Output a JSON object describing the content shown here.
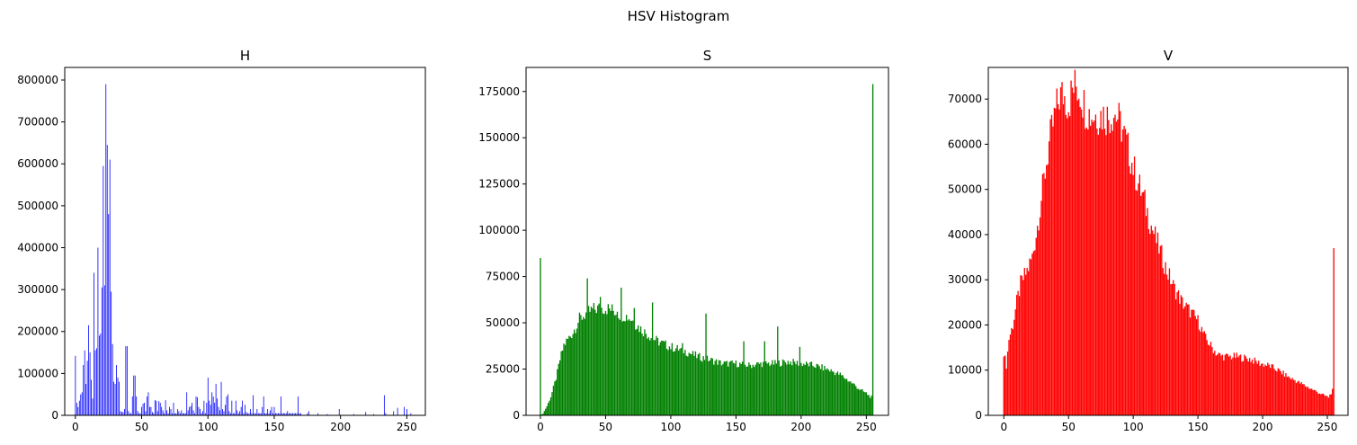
{
  "figure": {
    "suptitle": "HSV Histogram"
  },
  "chart_data": [
    {
      "type": "bar",
      "title": "H",
      "color": "#0000ff",
      "xlim": [
        -8,
        264
      ],
      "ylim": [
        0,
        830000
      ],
      "xticks": [
        0,
        50,
        100,
        150,
        200,
        250
      ],
      "xtick_labels": [
        "0",
        "50",
        "100",
        "150",
        "200",
        "250"
      ],
      "yticks": [
        0,
        100000,
        200000,
        300000,
        400000,
        500000,
        600000,
        700000,
        800000
      ],
      "ytick_labels": [
        "0",
        "100000",
        "200000",
        "300000",
        "400000",
        "500000",
        "600000",
        "700000",
        "800000"
      ],
      "points": [
        [
          0,
          142000
        ],
        [
          1,
          30000
        ],
        [
          2,
          20000
        ],
        [
          3,
          35000
        ],
        [
          4,
          50000
        ],
        [
          5,
          55000
        ],
        [
          6,
          120000
        ],
        [
          7,
          155000
        ],
        [
          8,
          75000
        ],
        [
          9,
          130000
        ],
        [
          10,
          215000
        ],
        [
          11,
          150000
        ],
        [
          12,
          85000
        ],
        [
          13,
          40000
        ],
        [
          14,
          340000
        ],
        [
          15,
          155000
        ],
        [
          16,
          160000
        ],
        [
          17,
          400000
        ],
        [
          18,
          190000
        ],
        [
          19,
          195000
        ],
        [
          20,
          305000
        ],
        [
          21,
          595000
        ],
        [
          22,
          310000
        ],
        [
          23,
          790000
        ],
        [
          24,
          645000
        ],
        [
          25,
          480000
        ],
        [
          26,
          610000
        ],
        [
          27,
          295000
        ],
        [
          28,
          170000
        ],
        [
          29,
          80000
        ],
        [
          30,
          75000
        ],
        [
          31,
          120000
        ],
        [
          32,
          90000
        ],
        [
          33,
          80000
        ],
        [
          34,
          10000
        ],
        [
          35,
          8000
        ],
        [
          36,
          8000
        ],
        [
          37,
          15000
        ],
        [
          38,
          165000
        ],
        [
          39,
          165000
        ],
        [
          40,
          10000
        ],
        [
          41,
          5000
        ],
        [
          42,
          5000
        ],
        [
          43,
          45000
        ],
        [
          44,
          95000
        ],
        [
          45,
          95000
        ],
        [
          46,
          45000
        ],
        [
          47,
          10000
        ],
        [
          48,
          5000
        ],
        [
          49,
          5000
        ],
        [
          50,
          20000
        ],
        [
          51,
          28000
        ],
        [
          52,
          30000
        ],
        [
          53,
          10000
        ],
        [
          54,
          45000
        ],
        [
          55,
          55000
        ],
        [
          56,
          20000
        ],
        [
          57,
          20000
        ],
        [
          58,
          8000
        ],
        [
          59,
          5000
        ],
        [
          60,
          36000
        ],
        [
          61,
          35000
        ],
        [
          62,
          10000
        ],
        [
          63,
          34000
        ],
        [
          64,
          30000
        ],
        [
          65,
          20000
        ],
        [
          66,
          12000
        ],
        [
          67,
          5000
        ],
        [
          68,
          36000
        ],
        [
          69,
          12000
        ],
        [
          70,
          5000
        ],
        [
          71,
          20000
        ],
        [
          72,
          15000
        ],
        [
          73,
          5000
        ],
        [
          74,
          30000
        ],
        [
          75,
          5000
        ],
        [
          76,
          5000
        ],
        [
          77,
          15000
        ],
        [
          78,
          10000
        ],
        [
          79,
          5000
        ],
        [
          80,
          12000
        ],
        [
          81,
          5000
        ],
        [
          82,
          5000
        ],
        [
          83,
          5000
        ],
        [
          84,
          55000
        ],
        [
          85,
          12000
        ],
        [
          86,
          20000
        ],
        [
          87,
          22000
        ],
        [
          88,
          30000
        ],
        [
          89,
          12000
        ],
        [
          90,
          5000
        ],
        [
          91,
          45000
        ],
        [
          92,
          43000
        ],
        [
          93,
          20000
        ],
        [
          94,
          15000
        ],
        [
          95,
          5000
        ],
        [
          96,
          10000
        ],
        [
          97,
          35000
        ],
        [
          98,
          5000
        ],
        [
          99,
          30000
        ],
        [
          100,
          90000
        ],
        [
          101,
          35000
        ],
        [
          102,
          25000
        ],
        [
          103,
          55000
        ],
        [
          104,
          45000
        ],
        [
          105,
          30000
        ],
        [
          106,
          75000
        ],
        [
          107,
          40000
        ],
        [
          108,
          20000
        ],
        [
          109,
          12000
        ],
        [
          110,
          80000
        ],
        [
          111,
          15000
        ],
        [
          112,
          10000
        ],
        [
          113,
          25000
        ],
        [
          114,
          45000
        ],
        [
          115,
          50000
        ],
        [
          116,
          10000
        ],
        [
          117,
          5000
        ],
        [
          118,
          35000
        ],
        [
          119,
          5000
        ],
        [
          120,
          5000
        ],
        [
          121,
          35000
        ],
        [
          122,
          12000
        ],
        [
          123,
          5000
        ],
        [
          124,
          10000
        ],
        [
          125,
          20000
        ],
        [
          126,
          35000
        ],
        [
          127,
          5000
        ],
        [
          128,
          25000
        ],
        [
          129,
          8000
        ],
        [
          130,
          5000
        ],
        [
          131,
          5000
        ],
        [
          132,
          15000
        ],
        [
          133,
          5000
        ],
        [
          134,
          48000
        ],
        [
          135,
          5000
        ],
        [
          136,
          5000
        ],
        [
          137,
          15000
        ],
        [
          138,
          5000
        ],
        [
          139,
          5000
        ],
        [
          140,
          5000
        ],
        [
          141,
          20000
        ],
        [
          142,
          45000
        ],
        [
          143,
          5000
        ],
        [
          144,
          5000
        ],
        [
          145,
          15000
        ],
        [
          146,
          5000
        ],
        [
          147,
          12000
        ],
        [
          148,
          20000
        ],
        [
          149,
          5000
        ],
        [
          150,
          20000
        ],
        [
          151,
          5000
        ],
        [
          152,
          5000
        ],
        [
          153,
          5000
        ],
        [
          154,
          5000
        ],
        [
          155,
          45000
        ],
        [
          156,
          5000
        ],
        [
          157,
          5000
        ],
        [
          158,
          5000
        ],
        [
          159,
          5000
        ],
        [
          160,
          10000
        ],
        [
          161,
          5000
        ],
        [
          162,
          5000
        ],
        [
          163,
          5000
        ],
        [
          164,
          5000
        ],
        [
          165,
          5000
        ],
        [
          166,
          5000
        ],
        [
          167,
          5000
        ],
        [
          168,
          45000
        ],
        [
          169,
          5000
        ],
        [
          170,
          5000
        ],
        [
          175,
          5000
        ],
        [
          176,
          10000
        ],
        [
          183,
          5000
        ],
        [
          190,
          3000
        ],
        [
          199,
          15000
        ],
        [
          210,
          3000
        ],
        [
          219,
          8000
        ],
        [
          225,
          3000
        ],
        [
          233,
          48000
        ],
        [
          234,
          5000
        ],
        [
          240,
          10000
        ],
        [
          243,
          18000
        ],
        [
          248,
          20000
        ],
        [
          250,
          15000
        ],
        [
          253,
          5000
        ]
      ]
    },
    {
      "type": "bar",
      "title": "S",
      "color": "#008000",
      "xlim": [
        -11,
        267
      ],
      "ylim": [
        0,
        188000
      ],
      "xticks": [
        0,
        50,
        100,
        150,
        200,
        250
      ],
      "xtick_labels": [
        "0",
        "50",
        "100",
        "150",
        "200",
        "250"
      ],
      "yticks": [
        0,
        25000,
        50000,
        75000,
        100000,
        125000,
        150000,
        175000
      ],
      "ytick_labels": [
        "0",
        "25000",
        "50000",
        "75000",
        "100000",
        "125000",
        "150000",
        "175000"
      ],
      "envelope": [
        [
          0,
          0
        ],
        [
          2,
          1000
        ],
        [
          5,
          5000
        ],
        [
          8,
          10000
        ],
        [
          10,
          15000
        ],
        [
          12,
          20000
        ],
        [
          15,
          30000
        ],
        [
          18,
          38000
        ],
        [
          20,
          40000
        ],
        [
          25,
          45000
        ],
        [
          30,
          52000
        ],
        [
          35,
          55000
        ],
        [
          40,
          57000
        ],
        [
          45,
          58000
        ],
        [
          50,
          58000
        ],
        [
          55,
          57000
        ],
        [
          60,
          55000
        ],
        [
          65,
          54000
        ],
        [
          70,
          52000
        ],
        [
          75,
          48000
        ],
        [
          80,
          45000
        ],
        [
          90,
          40000
        ],
        [
          100,
          37000
        ],
        [
          110,
          35000
        ],
        [
          120,
          32000
        ],
        [
          130,
          30000
        ],
        [
          140,
          28000
        ],
        [
          150,
          28000
        ],
        [
          160,
          27000
        ],
        [
          170,
          28000
        ],
        [
          180,
          28000
        ],
        [
          190,
          29000
        ],
        [
          200,
          28000
        ],
        [
          210,
          27000
        ],
        [
          220,
          25000
        ],
        [
          230,
          22000
        ],
        [
          240,
          17000
        ],
        [
          245,
          14000
        ],
        [
          250,
          12000
        ],
        [
          253,
          10000
        ],
        [
          254,
          10000
        ]
      ],
      "spikes": [
        [
          0,
          85000
        ],
        [
          36,
          74000
        ],
        [
          46,
          64000
        ],
        [
          59,
          56000
        ],
        [
          62,
          69000
        ],
        [
          72,
          58000
        ],
        [
          86,
          61000
        ],
        [
          109,
          39000
        ],
        [
          127,
          55000
        ],
        [
          156,
          40000
        ],
        [
          172,
          40000
        ],
        [
          182,
          48000
        ],
        [
          199,
          37000
        ],
        [
          255,
          179000
        ]
      ]
    },
    {
      "type": "bar",
      "title": "V",
      "color": "#ff0000",
      "xlim": [
        -12,
        266
      ],
      "ylim": [
        0,
        77000
      ],
      "xticks": [
        0,
        50,
        100,
        150,
        200,
        250
      ],
      "xtick_labels": [
        "0",
        "50",
        "100",
        "150",
        "200",
        "250"
      ],
      "yticks": [
        0,
        10000,
        20000,
        30000,
        40000,
        50000,
        60000,
        70000
      ],
      "ytick_labels": [
        "0",
        "10000",
        "20000",
        "30000",
        "40000",
        "50000",
        "60000",
        "70000"
      ],
      "envelope": [
        [
          0,
          14000
        ],
        [
          2,
          11000
        ],
        [
          4,
          17000
        ],
        [
          7,
          20000
        ],
        [
          10,
          25000
        ],
        [
          13,
          29000
        ],
        [
          18,
          32000
        ],
        [
          22,
          35000
        ],
        [
          26,
          42000
        ],
        [
          30,
          50000
        ],
        [
          35,
          60000
        ],
        [
          40,
          67000
        ],
        [
          43,
          70500
        ],
        [
          46,
          71000
        ],
        [
          50,
          69000
        ],
        [
          53,
          72000
        ],
        [
          56,
          73000
        ],
        [
          60,
          71000
        ],
        [
          63,
          68000
        ],
        [
          67,
          66500
        ],
        [
          72,
          66500
        ],
        [
          77,
          66500
        ],
        [
          81,
          66000
        ],
        [
          85,
          67000
        ],
        [
          88,
          66000
        ],
        [
          92,
          63000
        ],
        [
          97,
          58000
        ],
        [
          102,
          53000
        ],
        [
          108,
          48000
        ],
        [
          114,
          42000
        ],
        [
          120,
          37000
        ],
        [
          126,
          32000
        ],
        [
          132,
          28000
        ],
        [
          138,
          25000
        ],
        [
          144,
          23000
        ],
        [
          150,
          21000
        ],
        [
          156,
          17000
        ],
        [
          161,
          15000
        ],
        [
          165,
          13500
        ],
        [
          170,
          13000
        ],
        [
          180,
          13000
        ],
        [
          190,
          12500
        ],
        [
          198,
          11500
        ],
        [
          205,
          11000
        ],
        [
          212,
          10000
        ],
        [
          220,
          8500
        ],
        [
          230,
          7000
        ],
        [
          240,
          5500
        ],
        [
          247,
          4500
        ],
        [
          251,
          4000
        ],
        [
          253,
          5000
        ],
        [
          254,
          5500
        ]
      ],
      "spikes": [
        [
          255,
          37000
        ]
      ]
    }
  ]
}
